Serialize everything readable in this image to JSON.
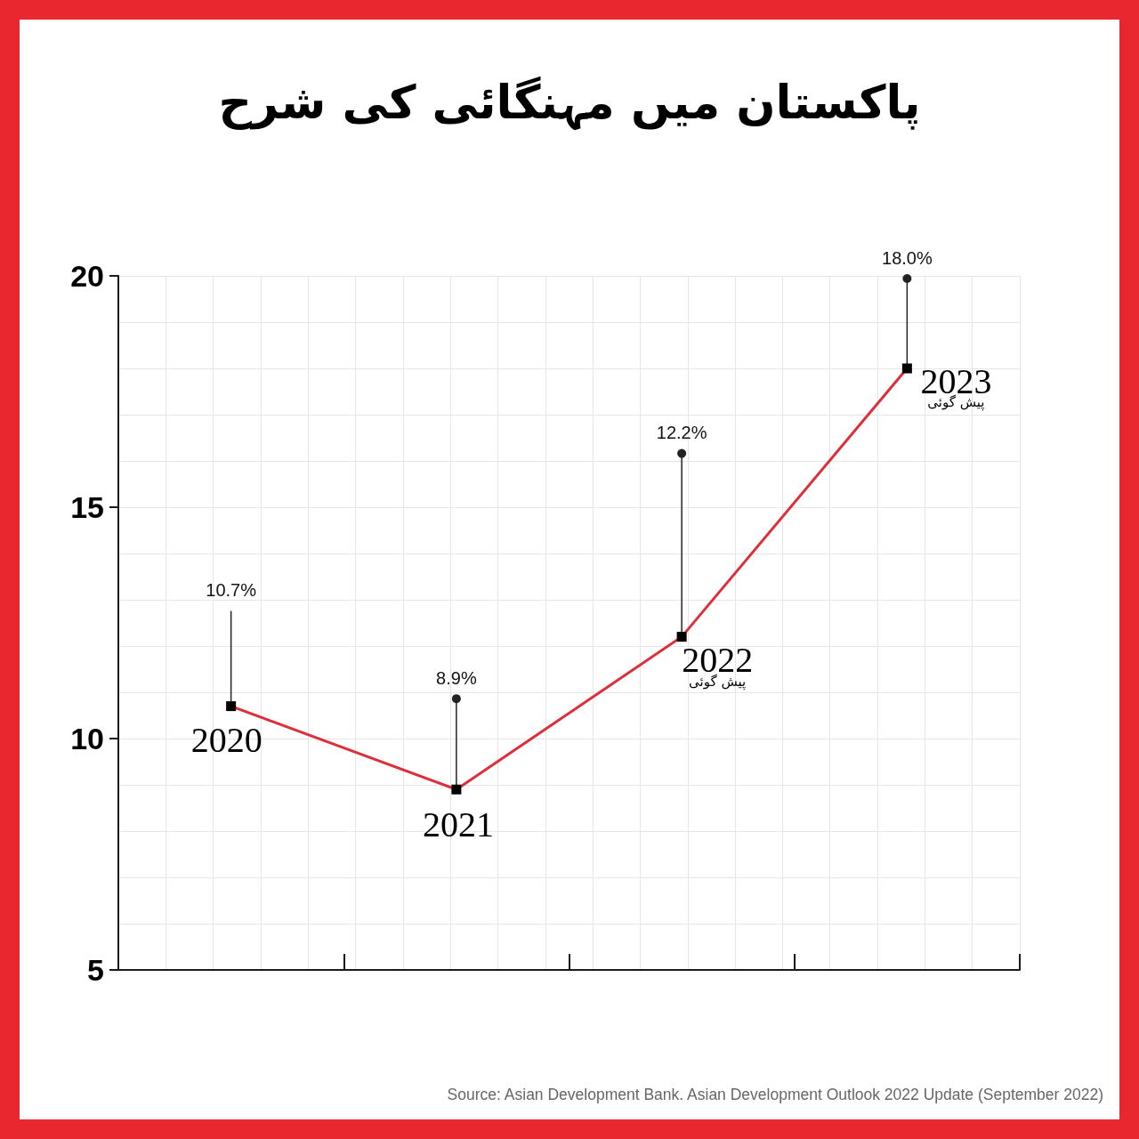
{
  "chart_data": {
    "type": "line",
    "title": "پاکستان میں مہنگائی کی شرح",
    "categories": [
      "2020",
      "2021",
      "2022",
      "2023"
    ],
    "values": [
      10.7,
      8.9,
      12.2,
      18.0
    ],
    "color": "#dd2e3a",
    "value_labels": [
      "10.7%",
      "8.9%",
      "12.2%",
      "18.0%"
    ],
    "ylim": [
      5,
      20
    ],
    "yticks": [
      5,
      10,
      15,
      20
    ],
    "grid": true,
    "marker": "square",
    "line_style": "solid",
    "tick_labels": "y",
    "annotations": [
      {
        "text": "پیش گوئی",
        "x": "2022",
        "y": 12.2
      },
      {
        "text": "پیش گوئی",
        "x": "2023",
        "y": 18.0
      },
      "Source: Asian Development Bank. Asian Development Outlook 2022 Update (September 2022)"
    ]
  }
}
